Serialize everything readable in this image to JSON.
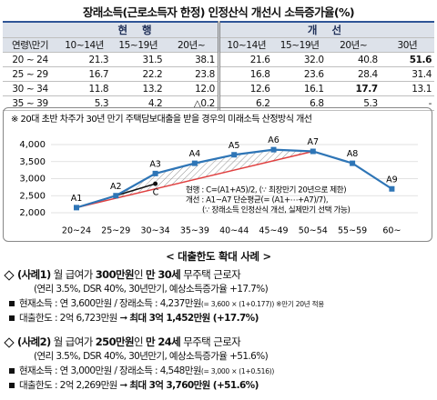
{
  "title": "장래소득(근로소득자 한정) 인정산식 개선시 소득증가율(%)",
  "table": {
    "groups": [
      {
        "label": "현 행",
        "span": 3
      },
      {
        "label": "개 선",
        "span": 4
      }
    ],
    "columns": [
      "연령\\만기",
      "10~14년",
      "15~19년",
      "20년~",
      "10~14년",
      "15~19년",
      "20년~",
      "30년"
    ],
    "rows": [
      [
        "20 ~ 24",
        "21.3",
        "31.5",
        "38.1",
        "21.6",
        "32.0",
        "40.8",
        "51.6"
      ],
      [
        "25 ~ 29",
        "16.7",
        "22.2",
        "23.8",
        "16.8",
        "23.6",
        "28.4",
        "31.4"
      ],
      [
        "30 ~ 34",
        "11.8",
        "13.2",
        "12.0",
        "12.6",
        "16.1",
        "17.7",
        "13.1"
      ],
      [
        "35 ~ 39",
        "5.3",
        "4.2",
        "△0.2",
        "6.2",
        "6.8",
        "5.3",
        "-"
      ]
    ],
    "bold": [
      [
        0,
        7
      ],
      [
        2,
        6
      ]
    ]
  },
  "chart_data": {
    "type": "line",
    "note": "※ 20대 초반 차주가 30년 만기 주택담보대출을 받을 경우의 미래소득 산정방식 개선",
    "categories": [
      "20~24",
      "25~29",
      "30~34",
      "35~39",
      "40~44",
      "45~49",
      "50~54",
      "55~59",
      "60~"
    ],
    "values": [
      2150,
      2500,
      3150,
      3450,
      3700,
      3850,
      3800,
      3450,
      2700
    ],
    "point_labels": [
      "A1",
      "A2",
      "A3",
      "A4",
      "A5",
      "A6",
      "A7",
      "A8",
      "A9"
    ],
    "color": "#2e75b6",
    "c_point": {
      "label": "C",
      "value": 2850
    },
    "annotations": [
      "현행 : C=(A1+A5)/2, (∵ 최장만기 20년으로 제한)",
      "개선 : A1~A7 단순평균(= (A1+⋯+A7)/7),",
      "(∵ 장래소득 인정산식 개선, 실제만기 선택 가능)"
    ],
    "ylim": [
      2000,
      4000
    ],
    "yticks": [
      {
        "value": 2000,
        "label": "2,000"
      },
      {
        "value": 2500,
        "label": "2,500"
      },
      {
        "value": 3000,
        "label": "3,000"
      },
      {
        "value": 3500,
        "label": "3,500"
      },
      {
        "value": 4000,
        "label": "4,000"
      }
    ]
  },
  "section_title": "< 대출한도 확대 사례 >",
  "cases": [
    {
      "heading": [
        {
          "t": "(사례1)",
          "b": true
        },
        {
          "t": " 월 급여가 "
        },
        {
          "t": "300만원",
          "b": true
        },
        {
          "t": "인 "
        },
        {
          "t": "만 30세",
          "b": true
        },
        {
          "t": " 무주택 근로자"
        }
      ],
      "condition": "(연리 3.5%, DSR 40%, 30년만기, 예상소득증가율 +17.7%)",
      "items": [
        [
          {
            "t": "현재소득 : 연 3,600만원 / 장래소득 : 4,237만원"
          },
          {
            "t": "(= 3,600 × (1+0.177)) ※만기 20년 적용",
            "s": true
          }
        ],
        [
          {
            "t": "대출한도 : 2억 6,723만원 ➞ "
          },
          {
            "t": "최대 3억 1,452만원 (+17.7%)",
            "b": true
          }
        ]
      ]
    },
    {
      "heading": [
        {
          "t": "(사례2)",
          "b": true
        },
        {
          "t": " 월 급여가 "
        },
        {
          "t": "250만원",
          "b": true
        },
        {
          "t": "인 "
        },
        {
          "t": "만 24세",
          "b": true
        },
        {
          "t": " 무주택 근로자"
        }
      ],
      "condition": "(연리 3.5%, DSR 40%, 30년만기, 예상소득증가율 +51.6%)",
      "items": [
        [
          {
            "t": "현재소득 : 연 3,000만원 / 장래소득 : 4,548만원"
          },
          {
            "t": "(= 3,000 × (1+0.516))",
            "s": true
          }
        ],
        [
          {
            "t": "대출한도 : 2억 2,269만원 ➞ "
          },
          {
            "t": "최대 3억 3,760만원 (+51.6%)",
            "b": true
          }
        ]
      ]
    }
  ]
}
